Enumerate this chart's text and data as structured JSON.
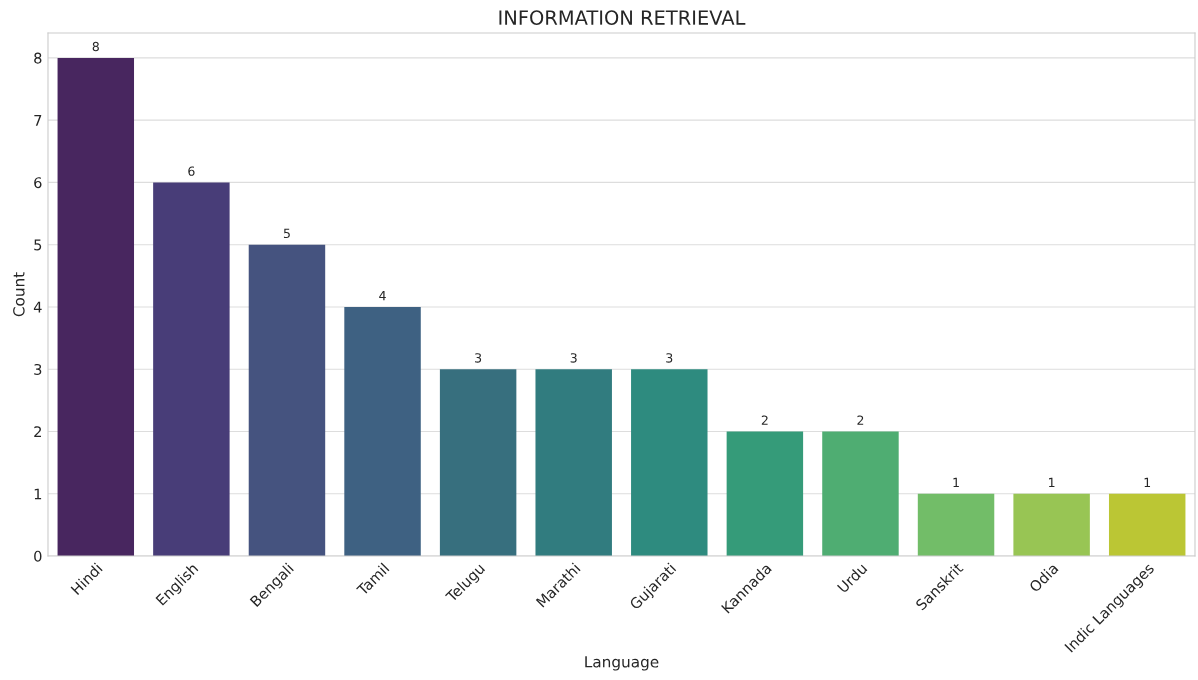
{
  "chart_data": {
    "type": "bar",
    "title": "INFORMATION RETRIEVAL",
    "xlabel": "Language",
    "ylabel": "Count",
    "categories": [
      "Hindi",
      "English",
      "Bengali",
      "Tamil",
      "Telugu",
      "Marathi",
      "Gujarati",
      "Kannada",
      "Urdu",
      "Sanskrit",
      "Odia",
      "Indic Languages"
    ],
    "values": [
      8,
      6,
      5,
      4,
      3,
      3,
      3,
      2,
      2,
      1,
      1,
      1
    ],
    "colors": [
      "#48265f",
      "#483d78",
      "#45537f",
      "#3e6182",
      "#376f7e",
      "#317c7f",
      "#2e8b7f",
      "#359b79",
      "#4fad72",
      "#72bd68",
      "#98c554",
      "#bbc634"
    ],
    "ylim": [
      0,
      8.4
    ],
    "yticks": [
      0,
      1,
      2,
      3,
      4,
      5,
      6,
      7,
      8
    ],
    "grid": "y",
    "data_labels": true
  }
}
